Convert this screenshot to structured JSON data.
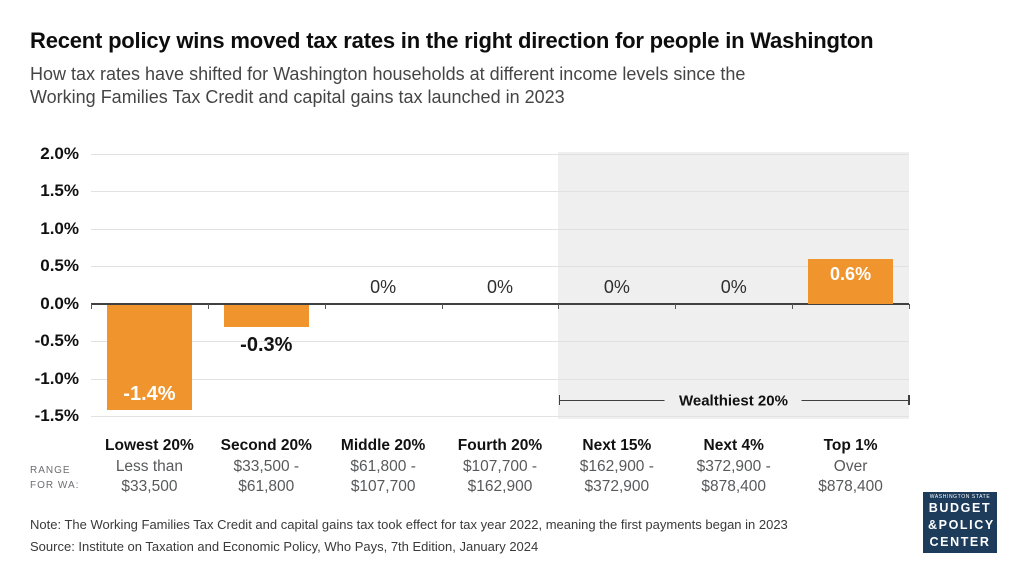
{
  "header": {
    "title": "Recent policy wins moved tax rates in the right direction for people in Washington",
    "subtitle_line1": "How tax rates have shifted for Washington households at different income levels since the",
    "subtitle_line2": "Working Families Tax Credit and capital gains tax launched in 2023"
  },
  "chart_data": {
    "type": "bar",
    "title": "Recent policy wins moved tax rates in the right direction for people in Washington",
    "xlabel": "",
    "ylabel": "",
    "unit": "%",
    "ylim": [
      -1.5,
      2.0
    ],
    "grid": true,
    "y_tick_labels": [
      "2.0%",
      "1.5%",
      "1.0%",
      "0.5%",
      "0.0%",
      "-0.5%",
      "-1.0%",
      "-1.5%"
    ],
    "categories": [
      "Lowest 20%",
      "Second 20%",
      "Middle 20%",
      "Fourth 20%",
      "Next 15%",
      "Next 4%",
      "Top 1%"
    ],
    "values": [
      -1.4,
      -0.3,
      0,
      0,
      0,
      0,
      0.6
    ],
    "value_labels": [
      "-1.4%",
      "-0.3%",
      "0%",
      "0%",
      "0%",
      "0%",
      "0.6%"
    ],
    "income_ranges": [
      [
        "Less than",
        "$33,500"
      ],
      [
        "$33,500 -",
        "$61,800"
      ],
      [
        "$61,800 -",
        "$107,700"
      ],
      [
        "$107,700 -",
        "$162,900"
      ],
      [
        "$162,900 -",
        "$372,900"
      ],
      [
        "$372,900 -",
        "$878,400"
      ],
      [
        "Over",
        "$878,400"
      ]
    ],
    "range_row_header_line1": "RANGE",
    "range_row_header_line2": "FOR WA:",
    "annotation_label": "Wealthiest 20%",
    "shaded_categories": [
      "Next 15%",
      "Next 4%",
      "Top 1%"
    ],
    "colors": {
      "bar": "#F0942E",
      "shade": "#EFEFEF",
      "zero_axis": "#404040",
      "gridline": "#E2E2E2"
    }
  },
  "footer": {
    "note": "Note: The Working Families Tax Credit and capital gains tax took effect for tax year 2022, meaning the first payments began in 2023",
    "source": "Source: Institute on Taxation and Economic Policy, Who Pays, 7th Edition, January 2024"
  },
  "logo": {
    "tagline": "WASHINGTON STATE",
    "line1": "BUDGET",
    "line2": "&POLICY",
    "line3": "CENTER",
    "bg_color": "#1D3C5C"
  }
}
